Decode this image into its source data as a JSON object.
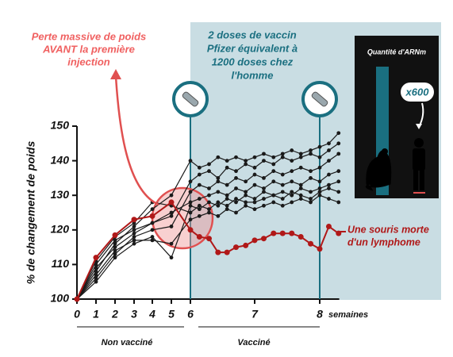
{
  "chart_data": {
    "type": "line",
    "y_label": "% de changement de poids",
    "x_unit_label": "semaines",
    "x": [
      0,
      1,
      2,
      3,
      4,
      5,
      6,
      6.14,
      6.29,
      6.43,
      6.57,
      6.71,
      6.86,
      7,
      7.14,
      7.29,
      7.43,
      7.57,
      7.71,
      7.86,
      8,
      8.14,
      8.29
    ],
    "xlim": [
      0,
      8.3
    ],
    "xticks": [
      0,
      1,
      2,
      3,
      4,
      5,
      6,
      7,
      8
    ],
    "ylim": [
      100,
      150
    ],
    "yticks": [
      100,
      110,
      120,
      130,
      140,
      150
    ],
    "series": [
      {
        "color": "#1a1a1a",
        "values": [
          100,
          108,
          116,
          121,
          126,
          130,
          140,
          138,
          139,
          141,
          140,
          141,
          140,
          141,
          142,
          141,
          142,
          143,
          142,
          143,
          144,
          145,
          148
        ]
      },
      {
        "color": "#1a1a1a",
        "values": [
          100,
          110,
          117,
          120,
          122,
          124,
          134,
          136,
          137,
          135,
          138,
          137,
          139,
          138,
          140,
          139,
          141,
          140,
          141,
          142,
          141,
          143,
          145
        ]
      },
      {
        "color": "#1a1a1a",
        "values": [
          100,
          106,
          113,
          118,
          120,
          121,
          131,
          133,
          132,
          134,
          133,
          135,
          134,
          136,
          135,
          137,
          136,
          137,
          138,
          137,
          138,
          140,
          142
        ]
      },
      {
        "color": "#1a1a1a",
        "values": [
          100,
          109,
          115,
          119,
          122,
          125,
          128,
          129,
          130,
          131,
          130,
          132,
          131,
          133,
          132,
          134,
          133,
          134,
          133,
          135,
          134,
          136,
          137
        ]
      },
      {
        "color": "#1a1a1a",
        "values": [
          100,
          105,
          112,
          116,
          118,
          112,
          127,
          126,
          128,
          127,
          129,
          128,
          130,
          129,
          131,
          130,
          131,
          130,
          132,
          131,
          132,
          133,
          134
        ]
      },
      {
        "color": "#1a1a1a",
        "values": [
          100,
          111,
          118,
          122,
          128,
          127,
          125,
          127,
          126,
          128,
          127,
          129,
          128,
          128,
          129,
          130,
          129,
          131,
          130,
          129,
          131,
          132,
          131
        ]
      },
      {
        "color": "#1a1a1a",
        "values": [
          100,
          107,
          114,
          117,
          117,
          116,
          123,
          124,
          125,
          124,
          126,
          125,
          127,
          126,
          127,
          128,
          127,
          128,
          129,
          128,
          130,
          129,
          128
        ]
      },
      {
        "color": "#b01818",
        "values": [
          100,
          112,
          118.5,
          123,
          124,
          128,
          120,
          118,
          117.5,
          113.5,
          113.5,
          115,
          115.5,
          117,
          117.5,
          119,
          119,
          119,
          118,
          116,
          114.5,
          121,
          119
        ]
      }
    ],
    "periods": [
      "Non vacciné",
      "Vacciné"
    ],
    "annotations": {
      "weight_loss": [
        "Perte massive de poids",
        "AVANT la première",
        "injection"
      ],
      "doses": [
        "2 doses de vaccin",
        "Pfizer équivalent à",
        "1200 doses chez",
        "l'homme"
      ],
      "inset_title": "Quantité d'ARNm",
      "inset_ratio": "x600",
      "death": [
        "Une souris morte",
        "d'un lymphome"
      ]
    }
  }
}
